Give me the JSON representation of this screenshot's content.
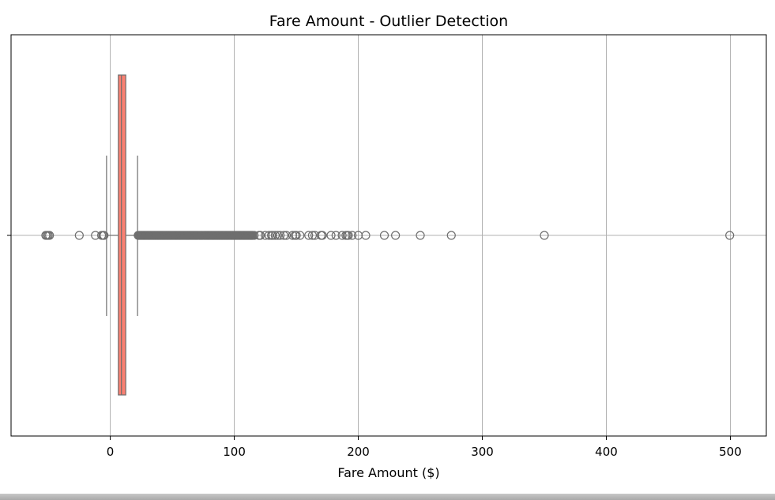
{
  "chart_data": {
    "type": "boxplot",
    "orientation": "horizontal",
    "title": "Fare Amount - Outlier Detection",
    "xlabel": "Fare Amount ($)",
    "ylabel": "",
    "xlim": [
      -80,
      529
    ],
    "xticks": [
      0,
      100,
      200,
      300,
      400,
      500
    ],
    "grid": true,
    "box": {
      "whisker_low": -3,
      "q1": 6.5,
      "median": 9,
      "q3": 12.5,
      "whisker_high": 22,
      "fill_color": "#fa8072",
      "edge_color": "#6e6e6e"
    },
    "outliers_low": [
      -52,
      -51,
      -50,
      -49,
      -25,
      -12,
      -7,
      -6,
      -5.5,
      -5
    ],
    "outlier_dense_range": [
      22.5,
      115
    ],
    "outliers_high": [
      116,
      120,
      121,
      125,
      128,
      130,
      131,
      133,
      135,
      137,
      140,
      142,
      147,
      149,
      150,
      153,
      160,
      163,
      165,
      170,
      171,
      178,
      182,
      187,
      190,
      191,
      192,
      195,
      200,
      206,
      221,
      230,
      250,
      275,
      350,
      499.5
    ],
    "outlier_color": "#6e6e6e"
  }
}
